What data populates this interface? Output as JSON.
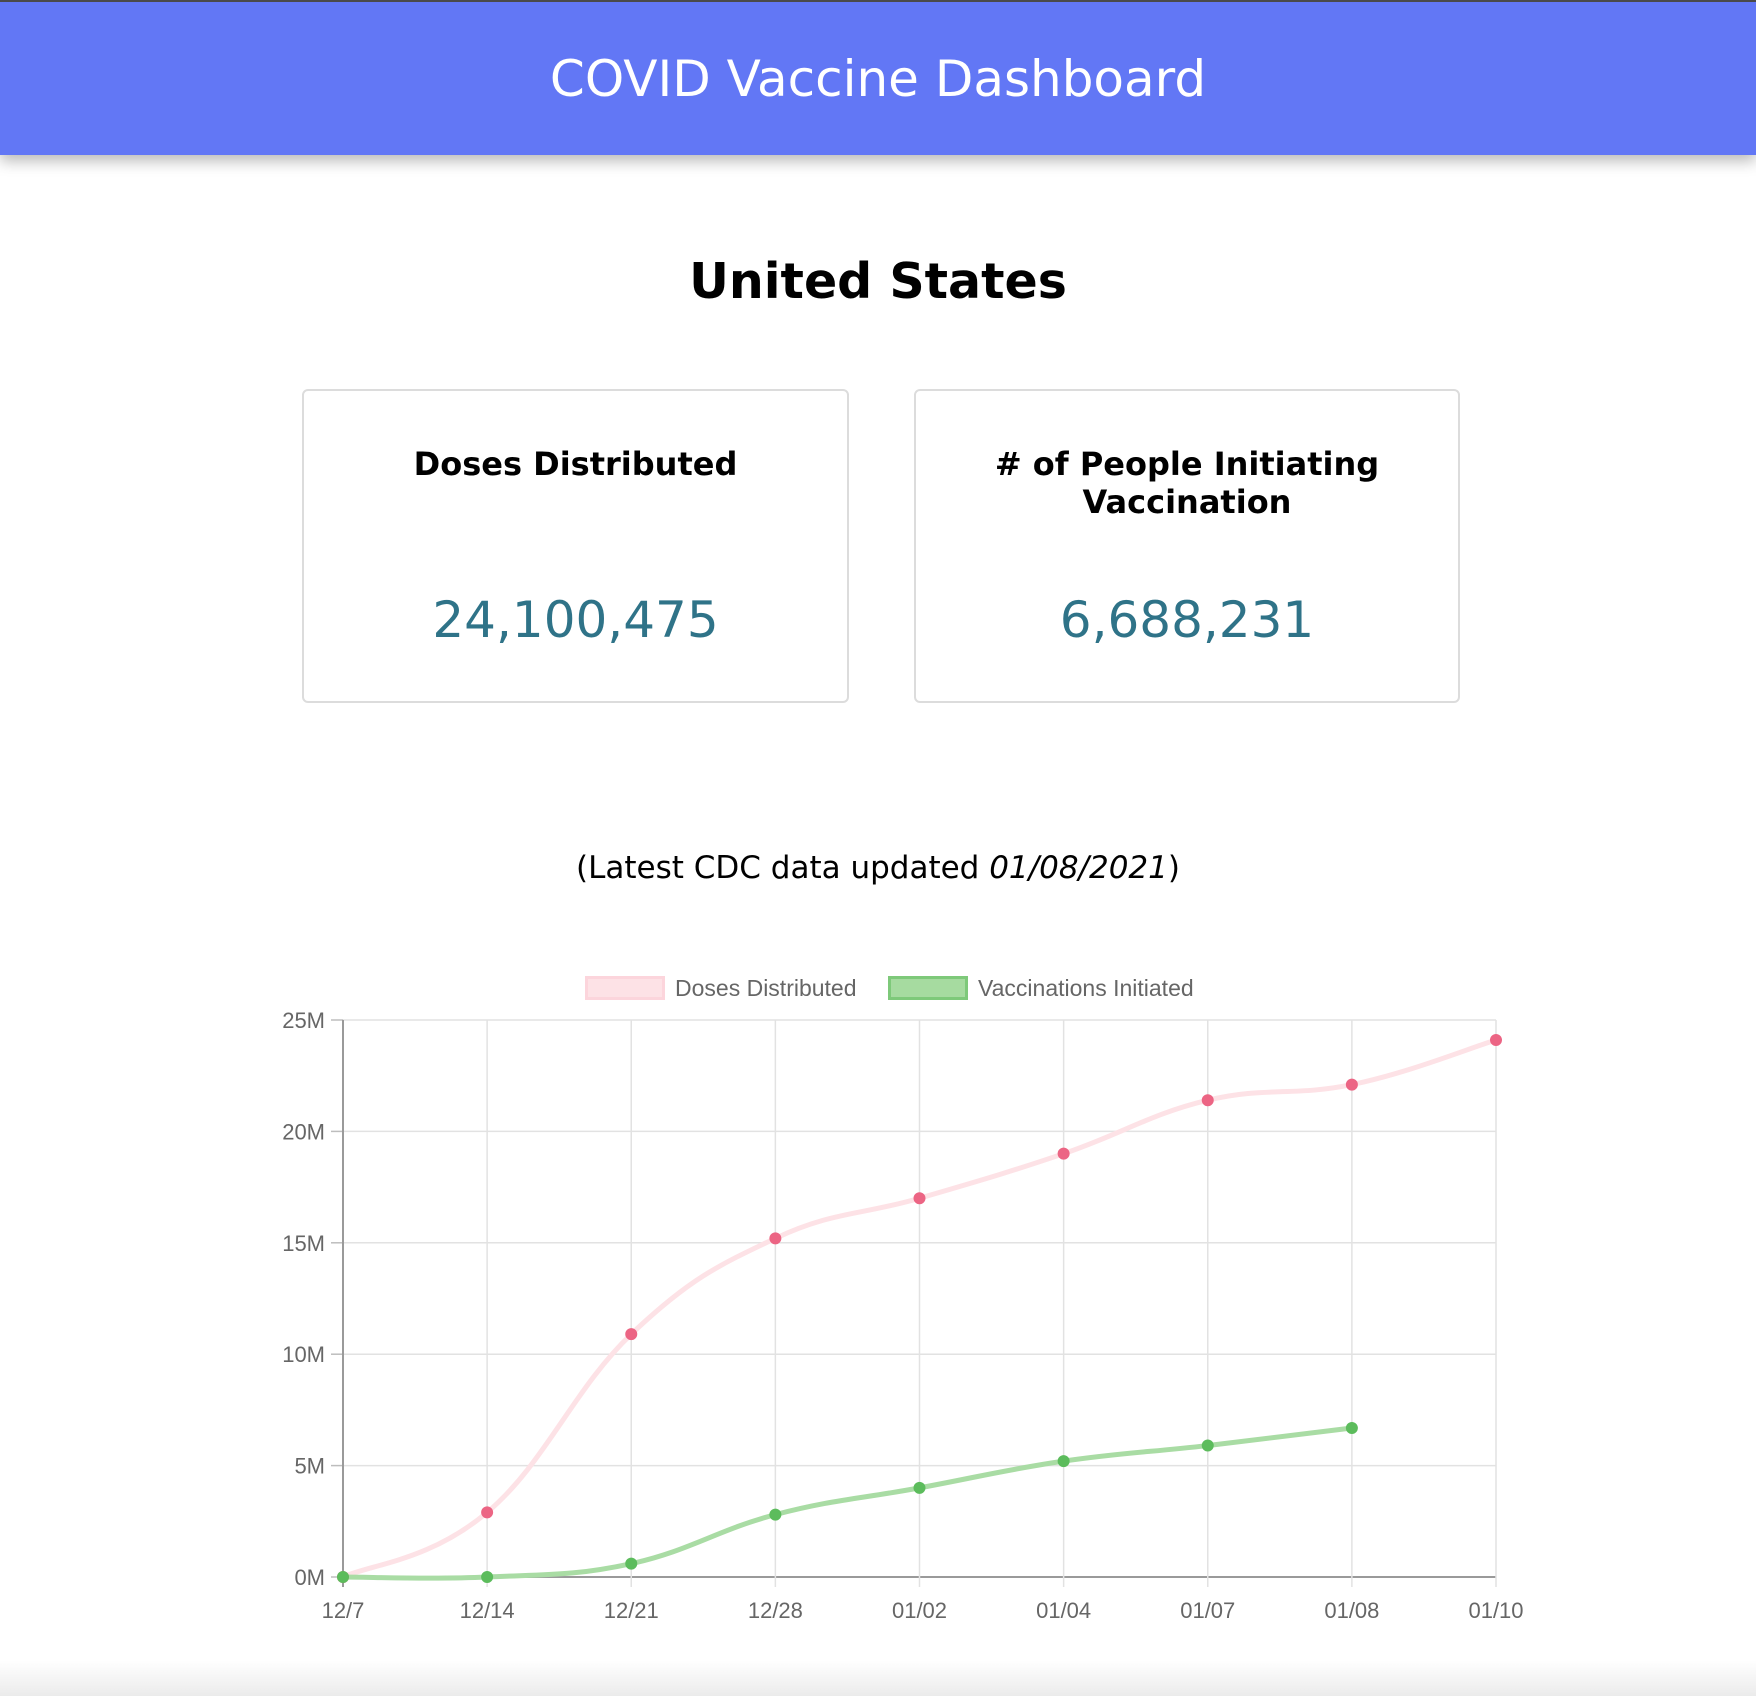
{
  "header": {
    "title": "COVID Vaccine Dashboard",
    "color": "#6277f5"
  },
  "region": {
    "name": "United States"
  },
  "cards": [
    {
      "label": "Doses Distributed",
      "value": "24,100,475"
    },
    {
      "label": "# of People Initiating Vaccination",
      "value": "6,688,231"
    }
  ],
  "update": {
    "prefix": "(Latest CDC data updated ",
    "date": "01/08/2021",
    "suffix": ")"
  },
  "chart_data": {
    "type": "line",
    "categories": [
      "12/7",
      "12/14",
      "12/21",
      "12/28",
      "01/02",
      "01/04",
      "01/07",
      "01/08",
      "01/10"
    ],
    "series": [
      {
        "name": "Doses Distributed",
        "values": [
          0,
          2900000,
          10900000,
          15200000,
          17000000,
          19000000,
          21400000,
          22100000,
          24100475
        ],
        "color": "#fde2e6",
        "point_color": "#ec6584"
      },
      {
        "name": "Vaccinations Initiated",
        "values": [
          0,
          0,
          600000,
          2800000,
          4000000,
          5200000,
          5900000,
          6688231,
          null
        ],
        "color": "#a6dba0",
        "point_color": "#5cbc5c"
      }
    ],
    "y_ticks": [
      "0M",
      "5M",
      "10M",
      "15M",
      "20M",
      "25M"
    ],
    "ylim": [
      0,
      25000000
    ],
    "grid": true,
    "legend": "top-center"
  }
}
